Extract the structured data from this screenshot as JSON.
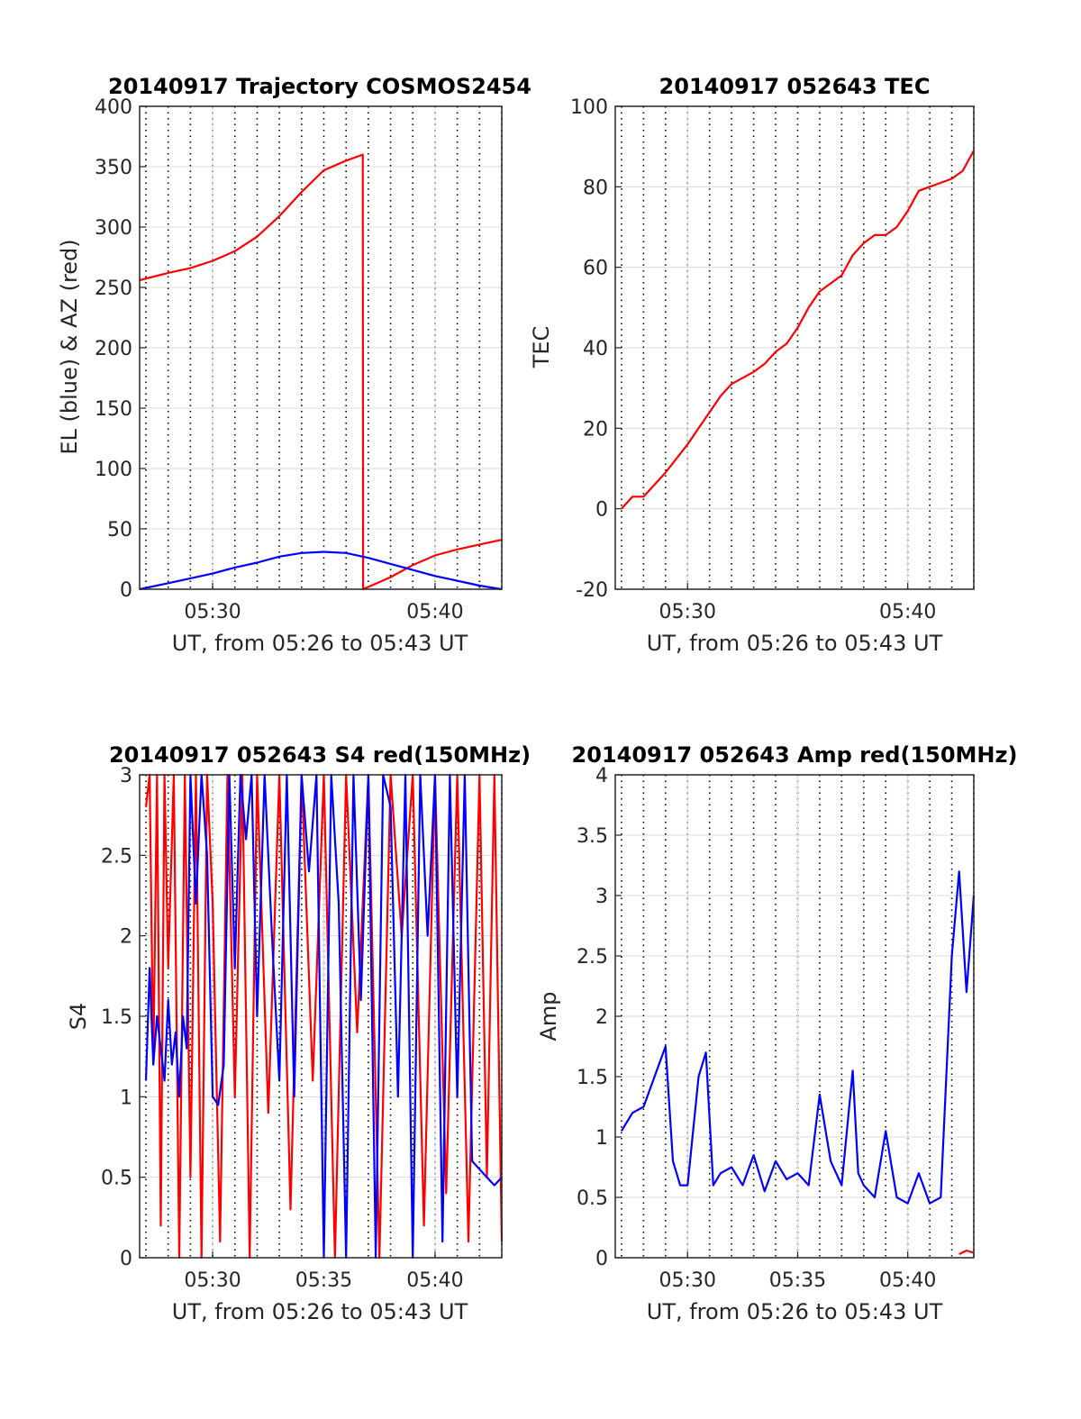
{
  "figure": {
    "background": "#ffffff",
    "grid_color": "#dcdcdc",
    "vline_color": "#000000"
  },
  "chart_data": [
    {
      "id": "trajectory",
      "type": "line",
      "title": "20140917 Trajectory COSMOS2454",
      "xlabel": "UT, from 05:26 to 05:43 UT",
      "ylabel": "EL (blue) & AZ (red)",
      "xlim": [
        "05:26:43",
        "05:43:00"
      ],
      "ylim": [
        0,
        400
      ],
      "yticks": [
        0,
        50,
        100,
        150,
        200,
        250,
        300,
        350,
        400
      ],
      "xticks": [
        "05:30",
        "05:40"
      ],
      "grid": true,
      "vlines_every_minute": true,
      "series": [
        {
          "key": "az",
          "color": "#ff0000",
          "x": [
            "05:26:43",
            "05:28:00",
            "05:29:00",
            "05:30:00",
            "05:31:00",
            "05:32:00",
            "05:33:00",
            "05:34:00",
            "05:35:00",
            "05:36:00",
            "05:36:45",
            "05:36:46",
            "05:38:00",
            "05:39:00",
            "05:40:00",
            "05:41:00",
            "05:42:00",
            "05:43:00"
          ],
          "y": [
            256,
            262,
            266,
            272,
            280,
            292,
            309,
            329,
            347,
            355,
            360,
            0,
            10,
            20,
            28,
            33,
            37,
            41
          ]
        },
        {
          "key": "el",
          "color": "#0000ff",
          "x": [
            "05:26:43",
            "05:28:00",
            "05:29:00",
            "05:30:00",
            "05:31:00",
            "05:32:00",
            "05:33:00",
            "05:34:00",
            "05:35:00",
            "05:36:00",
            "05:37:00",
            "05:38:00",
            "05:39:00",
            "05:40:00",
            "05:41:00",
            "05:42:00",
            "05:43:00"
          ],
          "y": [
            0,
            5,
            9,
            13,
            18,
            22,
            27,
            30,
            31,
            30,
            26,
            21,
            16,
            11,
            7,
            3,
            0
          ]
        }
      ]
    },
    {
      "id": "tec",
      "type": "line",
      "title": "20140917 052643 TEC",
      "xlabel": "UT, from 05:26 to 05:43 UT",
      "ylabel": "TEC",
      "xlim": [
        "05:26:43",
        "05:43:00"
      ],
      "ylim": [
        -20,
        100
      ],
      "yticks": [
        -20,
        0,
        20,
        40,
        60,
        80,
        100
      ],
      "xticks": [
        "05:30",
        "05:40"
      ],
      "grid": true,
      "vlines_every_minute": true,
      "series": [
        {
          "key": "tec",
          "color": "#ff0000",
          "x": [
            "05:27:00",
            "05:27:30",
            "05:28:00",
            "05:28:30",
            "05:29:00",
            "05:30:00",
            "05:30:30",
            "05:31:00",
            "05:31:30",
            "05:32:00",
            "05:33:00",
            "05:33:30",
            "05:34:00",
            "05:34:30",
            "05:35:00",
            "05:35:30",
            "05:36:00",
            "05:37:00",
            "05:37:30",
            "05:38:00",
            "05:38:30",
            "05:39:00",
            "05:39:30",
            "05:40:00",
            "05:40:30",
            "05:41:00",
            "05:41:30",
            "05:42:00",
            "05:42:30",
            "05:43:00"
          ],
          "y": [
            0,
            3,
            3,
            6,
            9,
            16,
            20,
            24,
            28,
            31,
            34,
            36,
            39,
            41,
            45,
            50,
            54,
            58,
            63,
            66,
            68,
            68,
            70,
            74,
            79,
            80,
            81,
            82,
            84,
            89
          ]
        }
      ]
    },
    {
      "id": "s4",
      "type": "line",
      "title": "20140917 052643 S4 red(150MHz)",
      "xlabel": "UT, from 05:26 to 05:43 UT",
      "ylabel": "S4",
      "xlim": [
        "05:26:43",
        "05:43:00"
      ],
      "ylim": [
        0,
        3
      ],
      "yticks": [
        0,
        0.5,
        1,
        1.5,
        2,
        2.5,
        3
      ],
      "xticks": [
        "05:30",
        "05:35",
        "05:40"
      ],
      "grid": true,
      "vlines_every_minute": true,
      "series": [
        {
          "key": "s4_red",
          "color": "#ff0000",
          "x": [
            "05:27:00",
            "05:27:10",
            "05:27:20",
            "05:27:30",
            "05:27:40",
            "05:27:50",
            "05:28:00",
            "05:28:15",
            "05:28:30",
            "05:28:45",
            "05:29:00",
            "05:29:15",
            "05:29:30",
            "05:29:45",
            "05:30:00",
            "05:30:20",
            "05:30:40",
            "05:31:00",
            "05:31:20",
            "05:31:40",
            "05:32:00",
            "05:32:30",
            "05:33:00",
            "05:33:30",
            "05:34:00",
            "05:34:30",
            "05:35:00",
            "05:35:30",
            "05:36:00",
            "05:36:30",
            "05:37:00",
            "05:37:30",
            "05:38:00",
            "05:38:30",
            "05:39:00",
            "05:39:30",
            "05:40:00",
            "05:40:30",
            "05:41:00",
            "05:41:30",
            "05:42:00",
            "05:42:20",
            "05:42:40",
            "05:43:00"
          ],
          "y": [
            2.8,
            3,
            1.2,
            3,
            0.2,
            3,
            1.8,
            3,
            0,
            3,
            0.5,
            3,
            0,
            3,
            2.2,
            0.1,
            3,
            1,
            3,
            0,
            3,
            0.9,
            3,
            0.3,
            3,
            1.1,
            3,
            0,
            3,
            1.4,
            3,
            0,
            3,
            2.0,
            3,
            0.2,
            3,
            0.4,
            3,
            0.1,
            3,
            0.5,
            3,
            0.1
          ]
        },
        {
          "key": "s4_blue",
          "color": "#0000ff",
          "x": [
            "05:27:00",
            "05:27:10",
            "05:27:20",
            "05:27:30",
            "05:27:40",
            "05:27:50",
            "05:28:00",
            "05:28:10",
            "05:28:20",
            "05:28:30",
            "05:28:40",
            "05:28:50",
            "05:29:00",
            "05:29:15",
            "05:29:30",
            "05:29:45",
            "05:30:00",
            "05:30:15",
            "05:30:30",
            "05:30:45",
            "05:31:00",
            "05:31:15",
            "05:31:30",
            "05:31:45",
            "05:32:00",
            "05:32:20",
            "05:32:40",
            "05:33:00",
            "05:33:20",
            "05:33:40",
            "05:34:00",
            "05:34:20",
            "05:34:40",
            "05:35:00",
            "05:35:20",
            "05:35:40",
            "05:36:00",
            "05:36:20",
            "05:36:40",
            "05:37:00",
            "05:37:20",
            "05:37:40",
            "05:38:00",
            "05:38:20",
            "05:38:40",
            "05:39:00",
            "05:39:20",
            "05:39:40",
            "05:40:00",
            "05:40:20",
            "05:40:40",
            "05:41:00",
            "05:41:20",
            "05:41:40",
            "05:42:00",
            "05:42:20",
            "05:42:40",
            "05:43:00"
          ],
          "y": [
            1.1,
            1.8,
            1.2,
            1.5,
            1.3,
            1.1,
            1.6,
            1.2,
            1.4,
            1.0,
            1.5,
            1.3,
            3,
            2.2,
            3,
            2.5,
            1.0,
            0.95,
            1.2,
            3,
            1.8,
            3,
            2.6,
            3,
            1.5,
            3,
            2.0,
            1.1,
            3,
            1.0,
            3,
            2.4,
            3,
            0.0,
            3,
            2.2,
            0.0,
            3,
            1.6,
            3,
            0.0,
            3,
            2.8,
            1.0,
            3,
            0.0,
            3,
            2.0,
            3,
            0.1,
            3,
            1.0,
            3,
            0.6,
            0.55,
            0.5,
            0.45,
            0.5
          ]
        }
      ]
    },
    {
      "id": "amp",
      "type": "line",
      "title": "20140917 052643 Amp red(150MHz)",
      "xlabel": "UT, from 05:26 to 05:43 UT",
      "ylabel": "Amp",
      "xlim": [
        "05:26:43",
        "05:43:00"
      ],
      "ylim": [
        0,
        4
      ],
      "yticks": [
        0,
        0.5,
        1,
        1.5,
        2,
        2.5,
        3,
        3.5,
        4
      ],
      "xticks": [
        "05:30",
        "05:35",
        "05:40"
      ],
      "grid": true,
      "vlines_every_minute": true,
      "series": [
        {
          "key": "amp_blue",
          "color": "#0000ff",
          "x": [
            "05:27:00",
            "05:27:30",
            "05:28:00",
            "05:28:30",
            "05:29:00",
            "05:29:20",
            "05:29:40",
            "05:30:00",
            "05:30:30",
            "05:30:50",
            "05:31:10",
            "05:31:30",
            "05:32:00",
            "05:32:30",
            "05:33:00",
            "05:33:30",
            "05:34:00",
            "05:34:30",
            "05:35:00",
            "05:35:30",
            "05:36:00",
            "05:36:30",
            "05:37:00",
            "05:37:30",
            "05:37:45",
            "05:38:00",
            "05:38:30",
            "05:39:00",
            "05:39:30",
            "05:40:00",
            "05:40:30",
            "05:41:00",
            "05:41:30",
            "05:42:00",
            "05:42:20",
            "05:42:40",
            "05:43:00"
          ],
          "y": [
            1.05,
            1.2,
            1.25,
            1.5,
            1.75,
            0.8,
            0.6,
            0.6,
            1.5,
            1.7,
            0.6,
            0.7,
            0.75,
            0.6,
            0.85,
            0.55,
            0.8,
            0.65,
            0.7,
            0.6,
            1.35,
            0.8,
            0.6,
            1.55,
            0.7,
            0.6,
            0.5,
            1.05,
            0.5,
            0.45,
            0.7,
            0.45,
            0.5,
            2.5,
            3.2,
            2.2,
            3.0
          ]
        },
        {
          "key": "amp_red",
          "color": "#ff0000",
          "x": [
            "05:42:20",
            "05:42:40",
            "05:43:00"
          ],
          "y": [
            0.03,
            0.06,
            0.04
          ]
        }
      ]
    }
  ]
}
